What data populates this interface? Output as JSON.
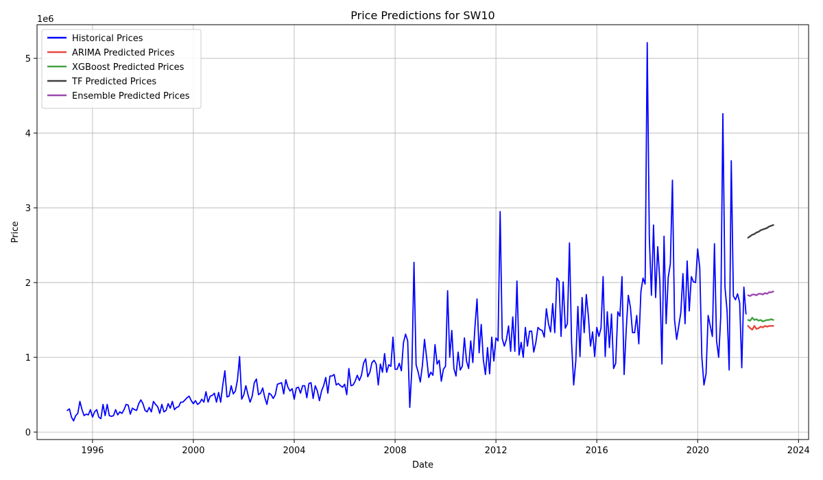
{
  "chart_data": {
    "type": "line",
    "title": "Price Predictions for SW10",
    "xlabel": "Date",
    "ylabel": "Price",
    "y_offset_label": "1e6",
    "xlim": [
      1993.8,
      2024.4
    ],
    "ylim": [
      -0.1,
      5.45
    ],
    "y_scale_factor": 1000000,
    "x_ticks": [
      1996,
      2000,
      2004,
      2008,
      2012,
      2016,
      2020,
      2024
    ],
    "y_ticks": [
      0,
      1,
      2,
      3,
      4,
      5
    ],
    "grid": true,
    "legend_position": "top-left",
    "series": [
      {
        "name": "Historical Prices",
        "color": "#0000ff",
        "x_start": 1995.0,
        "x_step": 0.0833333,
        "values": [
          0.29,
          0.31,
          0.2,
          0.15,
          0.22,
          0.25,
          0.41,
          0.3,
          0.22,
          0.24,
          0.23,
          0.3,
          0.2,
          0.27,
          0.3,
          0.2,
          0.18,
          0.37,
          0.22,
          0.37,
          0.22,
          0.21,
          0.22,
          0.3,
          0.23,
          0.27,
          0.25,
          0.3,
          0.37,
          0.36,
          0.24,
          0.32,
          0.3,
          0.29,
          0.38,
          0.43,
          0.38,
          0.29,
          0.27,
          0.33,
          0.27,
          0.41,
          0.37,
          0.34,
          0.25,
          0.37,
          0.27,
          0.29,
          0.38,
          0.32,
          0.41,
          0.3,
          0.33,
          0.34,
          0.4,
          0.4,
          0.43,
          0.46,
          0.48,
          0.42,
          0.38,
          0.42,
          0.37,
          0.39,
          0.44,
          0.4,
          0.54,
          0.4,
          0.48,
          0.49,
          0.52,
          0.4,
          0.53,
          0.4,
          0.63,
          0.82,
          0.47,
          0.48,
          0.62,
          0.51,
          0.55,
          0.7,
          1.01,
          0.44,
          0.5,
          0.62,
          0.5,
          0.4,
          0.48,
          0.66,
          0.71,
          0.5,
          0.52,
          0.59,
          0.46,
          0.37,
          0.52,
          0.5,
          0.45,
          0.5,
          0.64,
          0.65,
          0.66,
          0.51,
          0.7,
          0.6,
          0.55,
          0.58,
          0.44,
          0.59,
          0.6,
          0.52,
          0.62,
          0.62,
          0.46,
          0.65,
          0.66,
          0.45,
          0.62,
          0.55,
          0.42,
          0.55,
          0.62,
          0.73,
          0.52,
          0.75,
          0.75,
          0.77,
          0.63,
          0.65,
          0.62,
          0.6,
          0.64,
          0.5,
          0.85,
          0.62,
          0.63,
          0.68,
          0.76,
          0.69,
          0.76,
          0.92,
          0.98,
          0.74,
          0.8,
          0.93,
          0.96,
          0.91,
          0.63,
          0.91,
          0.8,
          1.05,
          0.8,
          0.9,
          0.88,
          1.27,
          0.84,
          0.84,
          0.92,
          0.82,
          1.2,
          1.31,
          1.22,
          0.33,
          0.85,
          2.27,
          0.9,
          0.8,
          0.67,
          0.89,
          1.24,
          1.0,
          0.73,
          0.8,
          0.76,
          1.17,
          0.91,
          0.96,
          0.68,
          0.84,
          0.88,
          1.89,
          1.0,
          1.36,
          0.85,
          0.75,
          1.07,
          0.83,
          0.88,
          1.26,
          0.95,
          0.85,
          1.22,
          0.93,
          1.4,
          1.78,
          1.06,
          1.44,
          0.97,
          0.77,
          1.13,
          0.78,
          1.27,
          0.95,
          1.26,
          1.22,
          2.95,
          1.25,
          1.15,
          1.24,
          1.42,
          1.08,
          1.54,
          1.08,
          2.02,
          1.03,
          1.2,
          1.0,
          1.4,
          1.15,
          1.35,
          1.35,
          1.07,
          1.2,
          1.4,
          1.37,
          1.36,
          1.27,
          1.65,
          1.45,
          1.34,
          1.72,
          1.33,
          2.06,
          2.02,
          1.28,
          2.01,
          1.39,
          1.45,
          2.53,
          1.2,
          0.63,
          0.95,
          1.68,
          1.01,
          1.8,
          1.33,
          1.84,
          1.55,
          1.15,
          1.34,
          1.01,
          1.4,
          1.28,
          1.39,
          2.08,
          1.01,
          1.61,
          1.13,
          1.58,
          0.85,
          0.92,
          1.61,
          1.55,
          2.08,
          0.77,
          1.37,
          1.83,
          1.67,
          1.33,
          1.33,
          1.56,
          1.18,
          1.88,
          2.06,
          1.98,
          5.21,
          2.6,
          1.83,
          2.77,
          1.8,
          2.48,
          2.02,
          0.91,
          2.62,
          1.45,
          2.07,
          2.25,
          3.37,
          1.5,
          1.24,
          1.42,
          1.6,
          2.12,
          1.45,
          2.29,
          1.62,
          2.08,
          2.01,
          2.0,
          2.45,
          2.2,
          1.0,
          0.63,
          0.78,
          1.56,
          1.42,
          1.28,
          2.52,
          1.22,
          1.0,
          1.55,
          4.26,
          1.94,
          1.62,
          0.83,
          3.63,
          1.82,
          1.77,
          1.85,
          1.73,
          0.86,
          1.94,
          1.58
        ]
      },
      {
        "name": "ARIMA Predicted Prices",
        "color": "#e8473d",
        "x_start": 2022.0,
        "x_step": 0.0833333,
        "values": [
          1.42,
          1.39,
          1.37,
          1.42,
          1.38,
          1.39,
          1.41,
          1.4,
          1.42,
          1.41,
          1.42,
          1.42,
          1.42
        ]
      },
      {
        "name": "XGBoost Predicted Prices",
        "color": "#43a143",
        "x_start": 2022.0,
        "x_step": 0.0833333,
        "values": [
          1.5,
          1.49,
          1.53,
          1.5,
          1.51,
          1.49,
          1.5,
          1.48,
          1.49,
          1.5,
          1.5,
          1.51,
          1.5
        ]
      },
      {
        "name": "TF Predicted Prices",
        "color": "#3f3f3f",
        "x_start": 2022.0,
        "x_step": 0.0833333,
        "values": [
          2.6,
          2.62,
          2.64,
          2.65,
          2.67,
          2.68,
          2.7,
          2.71,
          2.72,
          2.73,
          2.75,
          2.76,
          2.77
        ]
      },
      {
        "name": "Ensemble Predicted Prices",
        "color": "#9b48b0",
        "x_start": 2022.0,
        "x_step": 0.0833333,
        "values": [
          1.83,
          1.82,
          1.84,
          1.84,
          1.83,
          1.85,
          1.85,
          1.84,
          1.86,
          1.85,
          1.87,
          1.87,
          1.88
        ]
      }
    ]
  }
}
